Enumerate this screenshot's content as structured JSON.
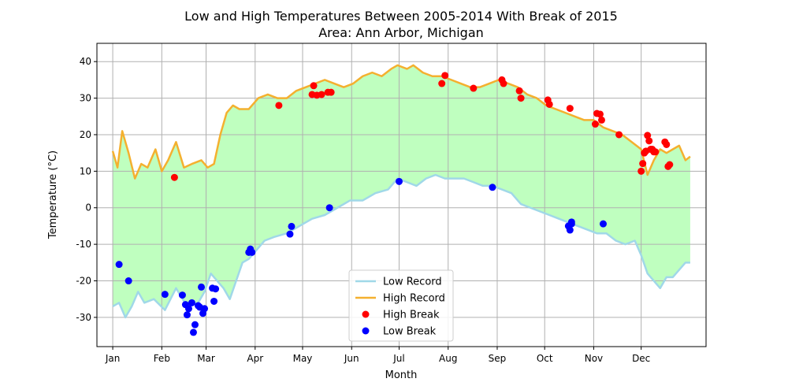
{
  "chart_data": {
    "type": "line",
    "title": "Low and High Temperatures Between 2005-2014 With Break of 2015",
    "subtitle": "Area: Ann Arbor, Michigan",
    "xlabel": "Month",
    "ylabel": "Temperature (°C)",
    "ylim": [
      -38,
      45
    ],
    "xlim": [
      -10,
      375
    ],
    "yticks": [
      -30,
      -20,
      -10,
      0,
      10,
      20,
      30,
      40
    ],
    "grid": true,
    "legend_position": "bottom-center",
    "month_ticks": [
      {
        "label": "Jan",
        "day": 0
      },
      {
        "label": "Feb",
        "day": 31
      },
      {
        "label": "Mar",
        "day": 59
      },
      {
        "label": "Apr",
        "day": 90
      },
      {
        "label": "May",
        "day": 120
      },
      {
        "label": "Jun",
        "day": 151
      },
      {
        "label": "Jul",
        "day": 181
      },
      {
        "label": "Aug",
        "day": 212
      },
      {
        "label": "Sep",
        "day": 243
      },
      {
        "label": "Oct",
        "day": 273
      },
      {
        "label": "Nov",
        "day": 304
      },
      {
        "label": "Dec",
        "day": 334
      }
    ],
    "fill_color": "#bfffbf",
    "series": [
      {
        "name": "Low Record",
        "color": "#a0d8e8",
        "x": [
          0,
          4,
          8,
          12,
          16,
          20,
          26,
          33,
          40,
          47,
          54,
          58,
          62,
          66,
          70,
          74,
          78,
          82,
          86,
          90,
          96,
          102,
          110,
          118,
          126,
          134,
          142,
          150,
          158,
          166,
          174,
          180,
          186,
          192,
          198,
          204,
          210,
          216,
          222,
          228,
          234,
          240,
          246,
          252,
          258,
          264,
          270,
          276,
          282,
          288,
          294,
          300,
          306,
          312,
          318,
          324,
          330,
          334,
          338,
          342,
          346,
          350,
          354,
          358,
          362,
          365
        ],
        "y": [
          -27,
          -26,
          -30,
          -27,
          -23,
          -26,
          -25,
          -28,
          -22,
          -27,
          -26,
          -23,
          -18,
          -20,
          -22,
          -25,
          -20,
          -15,
          -14,
          -12,
          -9,
          -8,
          -7,
          -5,
          -3,
          -2,
          0,
          2,
          2,
          4,
          5,
          8,
          7,
          6,
          8,
          9,
          8,
          8,
          8,
          7,
          6,
          6,
          5,
          4,
          1,
          0,
          -1,
          -2,
          -3,
          -4,
          -5,
          -6,
          -7,
          -7,
          -9,
          -10,
          -9,
          -13,
          -18,
          -20,
          -22,
          -19,
          -19,
          -17,
          -15,
          -15
        ]
      },
      {
        "name": "High Record",
        "color": "#f4b02f",
        "x": [
          0,
          3,
          6,
          10,
          14,
          18,
          22,
          27,
          31,
          35,
          40,
          45,
          50,
          56,
          60,
          64,
          68,
          72,
          76,
          80,
          86,
          92,
          98,
          104,
          110,
          116,
          122,
          128,
          134,
          140,
          146,
          152,
          158,
          164,
          170,
          176,
          180,
          186,
          190,
          196,
          202,
          208,
          214,
          220,
          226,
          232,
          238,
          244,
          250,
          256,
          262,
          268,
          274,
          280,
          286,
          292,
          298,
          304,
          310,
          316,
          322,
          328,
          334,
          338,
          342,
          346,
          350,
          354,
          358,
          362,
          365
        ],
        "y": [
          15.5,
          11,
          21,
          15,
          8,
          12,
          11,
          16,
          10,
          13,
          18,
          11,
          12,
          13,
          11,
          12,
          20,
          26,
          28,
          27,
          27,
          30,
          31,
          30,
          30,
          32,
          33,
          34,
          35,
          34,
          33,
          34,
          36,
          37,
          36,
          38,
          39,
          38,
          39,
          37,
          36,
          36,
          35,
          34,
          33,
          33,
          34,
          35,
          34,
          33,
          31,
          30,
          28,
          27,
          26,
          25,
          24,
          24,
          22,
          21,
          20,
          18,
          16,
          9,
          13,
          16,
          15,
          16,
          17,
          13,
          14
        ]
      }
    ],
    "scatter": [
      {
        "name": "High Break",
        "color": "#ff0000",
        "points": [
          [
            39,
            8.3
          ],
          [
            105,
            28
          ],
          [
            126,
            31
          ],
          [
            127,
            33.4
          ],
          [
            129,
            30.8
          ],
          [
            132,
            31
          ],
          [
            136,
            31.6
          ],
          [
            138,
            31.6
          ],
          [
            208,
            34
          ],
          [
            210,
            36.2
          ],
          [
            228,
            32.7
          ],
          [
            246,
            35
          ],
          [
            247,
            34
          ],
          [
            257,
            32
          ],
          [
            258,
            30
          ],
          [
            275,
            29.5
          ],
          [
            276,
            28.3
          ],
          [
            289,
            27.2
          ],
          [
            305,
            22.9
          ],
          [
            306,
            25.8
          ],
          [
            308,
            25.6
          ],
          [
            309,
            24
          ],
          [
            320,
            20
          ],
          [
            334,
            10
          ],
          [
            335,
            12.1
          ],
          [
            336,
            15
          ],
          [
            337,
            15.5
          ],
          [
            338,
            19.8
          ],
          [
            339,
            18.3
          ],
          [
            340,
            16
          ],
          [
            341,
            16
          ],
          [
            342,
            15.3
          ],
          [
            343,
            15.3
          ],
          [
            349,
            18
          ],
          [
            350,
            17.3
          ],
          [
            351,
            11.3
          ],
          [
            352,
            11.8
          ]
        ]
      },
      {
        "name": "Low Break",
        "color": "#0000ff",
        "points": [
          [
            4,
            -15.5
          ],
          [
            10,
            -20
          ],
          [
            33,
            -23.7
          ],
          [
            44,
            -23.9
          ],
          [
            46,
            -26.5
          ],
          [
            47,
            -29.3
          ],
          [
            48,
            -27.6
          ],
          [
            50,
            -26
          ],
          [
            51,
            -34.1
          ],
          [
            52,
            -32
          ],
          [
            54,
            -26.8
          ],
          [
            55,
            -27.2
          ],
          [
            56,
            -21.7
          ],
          [
            57,
            -28.9
          ],
          [
            58,
            -27.6
          ],
          [
            63,
            -22
          ],
          [
            64,
            -25.6
          ],
          [
            65,
            -22.2
          ],
          [
            86,
            -12.2
          ],
          [
            87,
            -11.3
          ],
          [
            88,
            -12.2
          ],
          [
            112,
            -7.2
          ],
          [
            113,
            -5.1
          ],
          [
            137,
            0
          ],
          [
            181,
            7.2
          ],
          [
            240,
            5.6
          ],
          [
            288,
            -5
          ],
          [
            289,
            -6.1
          ],
          [
            290,
            -4.4
          ],
          [
            290,
            -3.9
          ],
          [
            310,
            -4.4
          ]
        ]
      }
    ]
  }
}
